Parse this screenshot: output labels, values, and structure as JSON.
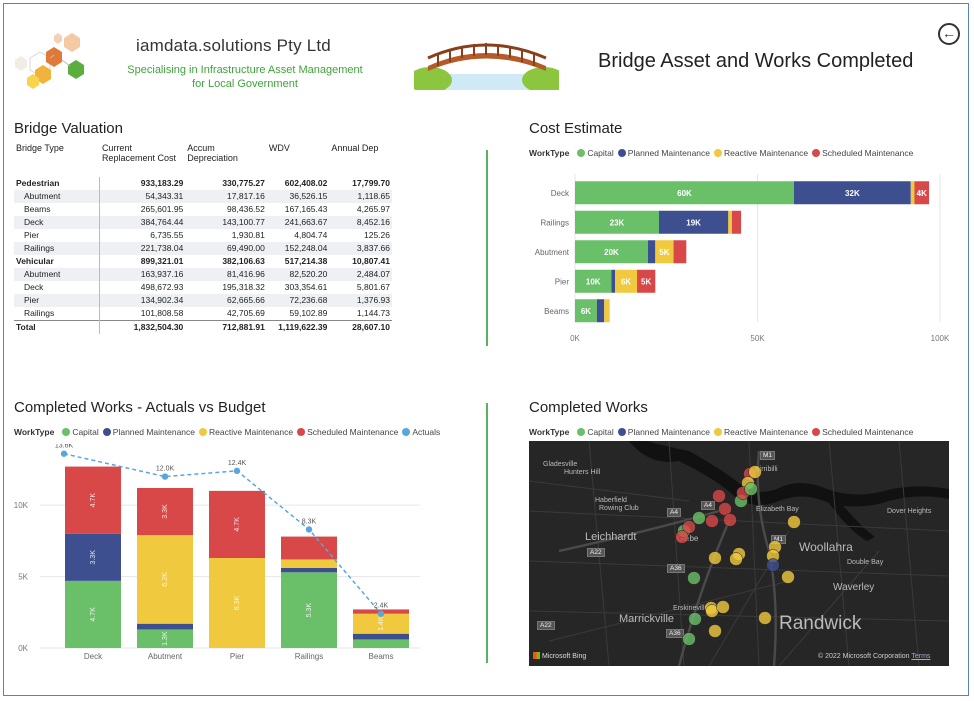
{
  "header": {
    "company_name": "iamdata.solutions Pty Ltd",
    "tagline_line1": "Specialising in Infrastructure Asset Management",
    "tagline_line2": "for Local Government",
    "report_title": "Bridge Asset and Works Completed",
    "back_icon": "back-arrow-icon"
  },
  "valuation": {
    "title": "Bridge Valuation",
    "columns": [
      "Bridge Type",
      "Current Replacement Cost",
      "Accum Depreciation",
      "WDV",
      "Annual Dep"
    ],
    "rows": [
      {
        "kind": "group",
        "name": "Pedestrian",
        "crc": "933,183.29",
        "accum": "330,775.27",
        "wdv": "602,408.02",
        "dep": "17,799.70"
      },
      {
        "kind": "sub",
        "name": "Abutment",
        "crc": "54,343.31",
        "accum": "17,817.16",
        "wdv": "36,526.15",
        "dep": "1,118.65"
      },
      {
        "kind": "sub",
        "name": "Beams",
        "crc": "265,601.95",
        "accum": "98,436.52",
        "wdv": "167,165.43",
        "dep": "4,265.97"
      },
      {
        "kind": "sub",
        "name": "Deck",
        "crc": "384,764.44",
        "accum": "143,100.77",
        "wdv": "241,663.67",
        "dep": "8,452.16"
      },
      {
        "kind": "sub",
        "name": "Pier",
        "crc": "6,735.55",
        "accum": "1,930.81",
        "wdv": "4,804.74",
        "dep": "125.26"
      },
      {
        "kind": "sub",
        "name": "Railings",
        "crc": "221,738.04",
        "accum": "69,490.00",
        "wdv": "152,248.04",
        "dep": "3,837.66"
      },
      {
        "kind": "group",
        "name": "Vehicular",
        "crc": "899,321.01",
        "accum": "382,106.63",
        "wdv": "517,214.38",
        "dep": "10,807.41"
      },
      {
        "kind": "sub",
        "name": "Abutment",
        "crc": "163,937.16",
        "accum": "81,416.96",
        "wdv": "82,520.20",
        "dep": "2,484.07"
      },
      {
        "kind": "sub",
        "name": "Deck",
        "crc": "498,672.93",
        "accum": "195,318.32",
        "wdv": "303,354.61",
        "dep": "5,801.67"
      },
      {
        "kind": "sub",
        "name": "Pier",
        "crc": "134,902.34",
        "accum": "62,665.66",
        "wdv": "72,236.68",
        "dep": "1,376.93"
      },
      {
        "kind": "sub",
        "name": "Railings",
        "crc": "101,808.58",
        "accum": "42,705.69",
        "wdv": "59,102.89",
        "dep": "1,144.73"
      },
      {
        "kind": "total",
        "name": "Total",
        "crc": "1,832,504.30",
        "accum": "712,881.91",
        "wdv": "1,119,622.39",
        "dep": "28,607.10"
      }
    ]
  },
  "colors": {
    "capital": "#6abf69",
    "planned": "#3d4f8f",
    "reactive": "#f0c93e",
    "scheduled": "#d84848",
    "actuals": "#5aa6dc",
    "divider": "#59b25c"
  },
  "cost_legend": {
    "title": "WorkType",
    "items": [
      "Capital",
      "Planned Maintenance",
      "Reactive Maintenance",
      "Scheduled Maintenance"
    ]
  },
  "works_legend": {
    "title": "WorkType",
    "items": [
      "Capital",
      "Planned Maintenance",
      "Reactive Maintenance",
      "Scheduled Maintenance",
      "Actuals"
    ]
  },
  "map": {
    "title": "Completed Works",
    "legend_title": "WorkType",
    "legend_items": [
      "Capital",
      "Planned Maintenance",
      "Reactive Maintenance",
      "Scheduled Maintenance"
    ],
    "place_labels": [
      "Glebe",
      "Leichhardt",
      "Woollahra",
      "Waverley",
      "Randwick",
      "Marrickville",
      "Erskineville",
      "Double Bay",
      "Dover Heights",
      "Elizabeth Bay",
      "Rowing Club",
      "Haberfield",
      "Gladesville",
      "Hunters Hill",
      "Kirribilli"
    ],
    "road_badges": [
      "M1",
      "A4",
      "A22",
      "A36",
      "A36",
      "A4",
      "M1",
      "A22"
    ],
    "bing_label": "Microsoft Bing",
    "copyright": "© 2022 Microsoft Corporation",
    "terms": "Terms"
  },
  "chart_data": [
    {
      "type": "bar",
      "orientation": "horizontal",
      "stacked": true,
      "title": "Cost Estimate",
      "categories": [
        "Deck",
        "Railings",
        "Abutment",
        "Pier",
        "Beams"
      ],
      "series": [
        {
          "name": "Capital",
          "values": [
            60000,
            23000,
            20000,
            10000,
            6000
          ]
        },
        {
          "name": "Planned Maintenance",
          "values": [
            32000,
            19000,
            2000,
            1000,
            2000
          ]
        },
        {
          "name": "Reactive Maintenance",
          "values": [
            1000,
            1000,
            5000,
            6000,
            1500
          ]
        },
        {
          "name": "Scheduled Maintenance",
          "values": [
            4000,
            2500,
            3500,
            5000,
            0
          ]
        }
      ],
      "data_labels": [
        [
          "60K",
          "32K",
          "",
          "4K"
        ],
        [
          "23K",
          "19K",
          "",
          ""
        ],
        [
          "20K",
          "",
          "5K",
          ""
        ],
        [
          "10K",
          "",
          "6K",
          "5K"
        ],
        [
          "6K",
          "",
          "",
          ""
        ]
      ],
      "x_ticks": [
        "0K",
        "50K",
        "100K"
      ],
      "xlim": [
        0,
        100000
      ],
      "grid": true,
      "legend": "top-left"
    },
    {
      "type": "bar",
      "stacked": true,
      "title": "Completed Works - Actuals vs Budget",
      "categories": [
        "Deck",
        "Abutment",
        "Pier",
        "Railings",
        "Beams"
      ],
      "series": [
        {
          "name": "Capital",
          "values": [
            4700,
            1300,
            0,
            5300,
            600
          ]
        },
        {
          "name": "Planned Maintenance",
          "values": [
            3300,
            400,
            0,
            300,
            400
          ]
        },
        {
          "name": "Reactive Maintenance",
          "values": [
            0,
            6200,
            6300,
            600,
            1400
          ]
        },
        {
          "name": "Scheduled Maintenance",
          "values": [
            4700,
            3300,
            4700,
            1600,
            300
          ]
        },
        {
          "name": "Actuals",
          "kind": "line",
          "values": [
            13600,
            12000,
            12400,
            8300,
            2400
          ]
        }
      ],
      "bar_labels": [
        [
          "4.7K",
          "3.3K",
          "",
          "4.7K"
        ],
        [
          "1.3K",
          "",
          "6.2K",
          "3.3K"
        ],
        [
          "",
          "",
          "6.3K",
          "4.7K"
        ],
        [
          "5.3K",
          "",
          "",
          ""
        ],
        [
          "",
          "",
          "1.4K",
          ""
        ]
      ],
      "line_labels": [
        "13.6K",
        "12.0K",
        "12.4K",
        "8.3K",
        "2.4K"
      ],
      "y_ticks": [
        "0K",
        "5K",
        "10K"
      ],
      "ylim": [
        0,
        14000
      ],
      "grid": true,
      "legend": "top-left"
    }
  ]
}
